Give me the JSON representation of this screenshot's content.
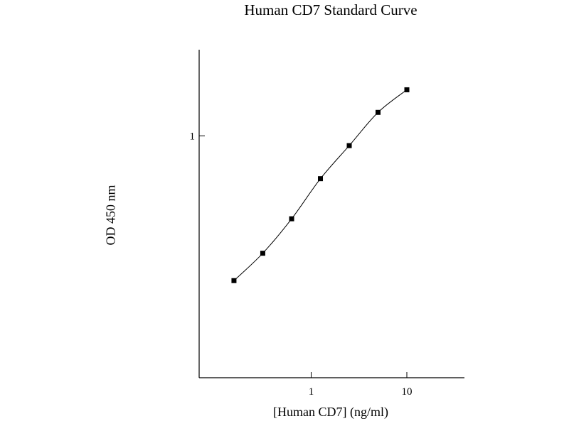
{
  "chart_data": {
    "type": "scatter",
    "title": "Human CD7 Standard Curve",
    "xlabel": "[Human CD7] (ng/ml)",
    "ylabel": "OD 450 nm",
    "x_scale": "log",
    "y_scale": "log",
    "xlim": [
      0.0675,
      40
    ],
    "ylim": [
      0.1,
      2.27
    ],
    "x_ticks": [
      {
        "value": 1,
        "label": "1"
      },
      {
        "value": 10,
        "label": "10"
      }
    ],
    "y_ticks": [
      {
        "value": 1,
        "label": "1"
      }
    ],
    "grid": false,
    "fit_line": "smooth curve through points",
    "series": [
      {
        "marker": "square",
        "color": "#000000",
        "x": [
          0.156,
          0.312,
          0.625,
          1.25,
          2.5,
          5,
          10
        ],
        "y": [
          0.252,
          0.327,
          0.454,
          0.665,
          0.911,
          1.25,
          1.55
        ]
      }
    ]
  }
}
